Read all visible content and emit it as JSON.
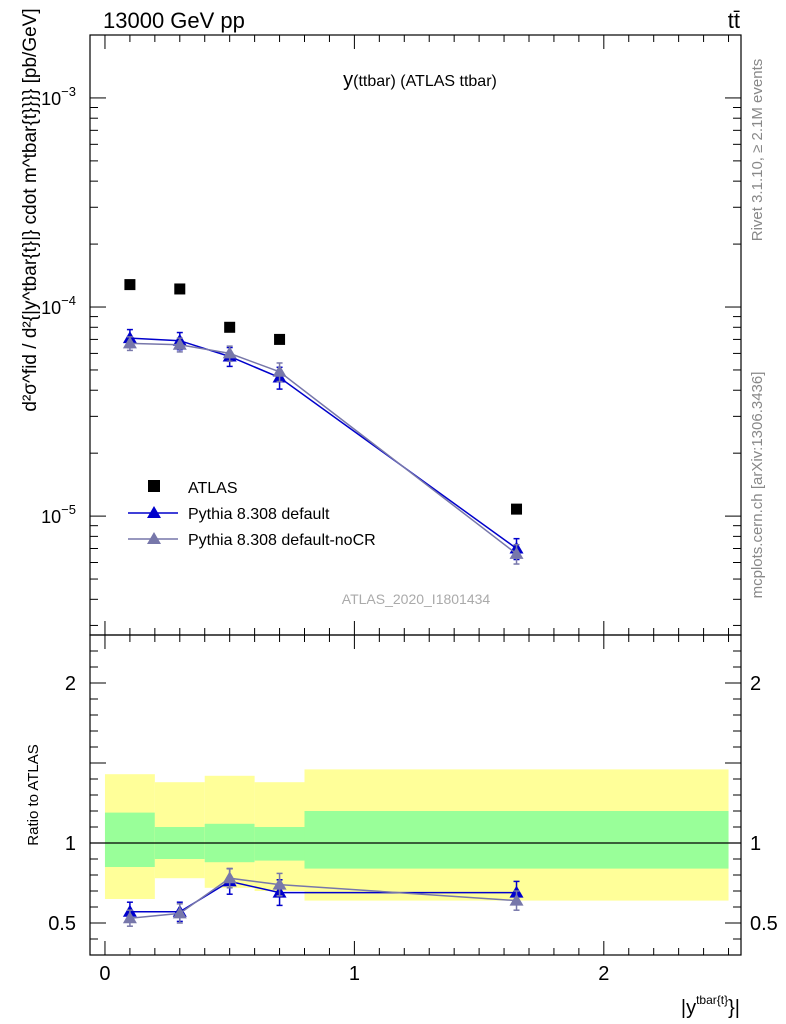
{
  "header": {
    "left": "13000 GeV pp",
    "right": "tt̄"
  },
  "side_labels": {
    "rivet": "Rivet 3.1.10, ≥ 2.1M events",
    "mcplots": "mcplots.cern.ch [arXiv:1306.3436]"
  },
  "colors": {
    "atlas": "#000000",
    "pythia_default": "#0000cc",
    "pythia_nocr": "#7777aa",
    "band_inner": "#99ff99",
    "band_outer": "#ffff99"
  },
  "chart_data": [
    {
      "type": "scatter",
      "panel": "main",
      "title_main": "y",
      "title_rest": "(ttbar) (ATLAS ttbar)",
      "analysis_label": "ATLAS_2020_I1801434",
      "ylabel": "d²σ^fid / d²{|y^tbar{t}|} cdot m^tbar{t}}}} [pb/GeV]",
      "yscale": "log",
      "ylim": [
        2.7e-06,
        0.002
      ],
      "xlim": [
        -0.06,
        2.55
      ],
      "y_ticks": [
        {
          "value": 0.001,
          "mantissa": "10",
          "exp": "−3"
        },
        {
          "value": 0.0001,
          "mantissa": "10",
          "exp": "−4"
        },
        {
          "value": 1e-05,
          "mantissa": "10",
          "exp": "−5"
        }
      ],
      "legend_position": "lower-left",
      "series": [
        {
          "name": "ATLAS",
          "marker": "square",
          "color": "#000000",
          "x": [
            0.1,
            0.3,
            0.5,
            0.7,
            1.65
          ],
          "y": [
            0.000128,
            0.000122,
            8e-05,
            7e-05,
            1.08e-05
          ]
        },
        {
          "name": "Pythia 8.308 default",
          "marker": "triangle",
          "color": "#0000cc",
          "x": [
            0.1,
            0.3,
            0.5,
            0.7,
            1.65
          ],
          "y": [
            7.1e-05,
            6.9e-05,
            5.8e-05,
            4.6e-05,
            7e-06
          ],
          "err": [
            7e-06,
            6.5e-06,
            6e-06,
            5.5e-06,
            8e-07
          ]
        },
        {
          "name": "Pythia 8.308 default-noCR",
          "marker": "triangle",
          "color": "#7777aa",
          "x": [
            0.1,
            0.3,
            0.5,
            0.7,
            1.65
          ],
          "y": [
            6.7e-05,
            6.6e-05,
            6e-05,
            4.9e-05,
            6.6e-06
          ],
          "err": [
            5e-06,
            5e-06,
            5e-06,
            5e-06,
            7e-07
          ]
        }
      ]
    },
    {
      "type": "scatter",
      "panel": "ratio",
      "ylabel": "Ratio to ATLAS",
      "xlabel_main": "|y",
      "xlabel_sup": "tbar{t}",
      "xlabel_end": "}|",
      "ylim": [
        0.3,
        2.3
      ],
      "xlim": [
        -0.06,
        2.55
      ],
      "y_ticks": [
        {
          "value": 0.5,
          "label": "0.5"
        },
        {
          "value": 1,
          "label": "1"
        },
        {
          "value": 2,
          "label": "2"
        }
      ],
      "x_ticks": [
        {
          "value": 0,
          "label": "0"
        },
        {
          "value": 1,
          "label": "1"
        },
        {
          "value": 2,
          "label": "2"
        }
      ],
      "reference_line": 1,
      "bands": [
        {
          "x0": 0.0,
          "x1": 0.2,
          "inner": [
            0.85,
            1.19
          ],
          "outer": [
            0.65,
            1.43
          ]
        },
        {
          "x0": 0.2,
          "x1": 0.4,
          "inner": [
            0.9,
            1.1
          ],
          "outer": [
            0.78,
            1.38
          ]
        },
        {
          "x0": 0.4,
          "x1": 0.6,
          "inner": [
            0.88,
            1.12
          ],
          "outer": [
            0.72,
            1.42
          ]
        },
        {
          "x0": 0.6,
          "x1": 0.8,
          "inner": [
            0.89,
            1.1
          ],
          "outer": [
            0.7,
            1.38
          ]
        },
        {
          "x0": 0.8,
          "x1": 2.5,
          "inner": [
            0.84,
            1.2
          ],
          "outer": [
            0.64,
            1.46
          ]
        }
      ],
      "series": [
        {
          "name": "Pythia 8.308 default",
          "marker": "triangle",
          "color": "#0000cc",
          "x": [
            0.1,
            0.3,
            0.5,
            0.7,
            1.65
          ],
          "y": [
            0.57,
            0.57,
            0.76,
            0.69,
            0.69
          ],
          "err": [
            0.06,
            0.06,
            0.08,
            0.08,
            0.07
          ]
        },
        {
          "name": "Pythia 8.308 default-noCR",
          "marker": "triangle",
          "color": "#7777aa",
          "x": [
            0.1,
            0.3,
            0.5,
            0.7,
            1.65
          ],
          "y": [
            0.53,
            0.56,
            0.78,
            0.74,
            0.64
          ],
          "err": [
            0.05,
            0.06,
            0.06,
            0.07,
            0.06
          ]
        }
      ]
    }
  ]
}
